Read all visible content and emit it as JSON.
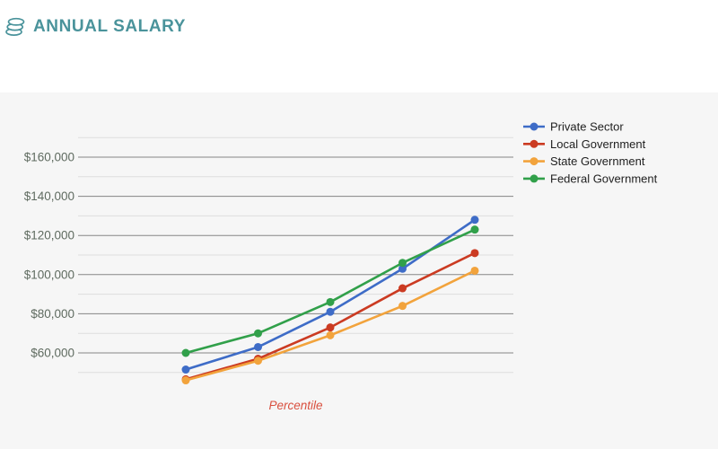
{
  "header": {
    "title": "ANNUAL SALARY",
    "icon": "coins-icon",
    "accent_color": "#4A939B"
  },
  "chart_data": {
    "type": "line",
    "x": [
      1,
      2,
      3,
      4,
      5
    ],
    "x_tick_labels_visible": false,
    "series": [
      {
        "name": "Private Sector",
        "color": "#3E6CC7",
        "values": [
          51500,
          63000,
          81000,
          103000,
          128000
        ]
      },
      {
        "name": "Local Government",
        "color": "#CB3B22",
        "values": [
          46500,
          57000,
          73000,
          93000,
          111000
        ]
      },
      {
        "name": "State Government",
        "color": "#F2A33C",
        "values": [
          46000,
          56000,
          69000,
          84000,
          102000
        ]
      },
      {
        "name": "Federal Government",
        "color": "#31A04A",
        "values": [
          60000,
          70000,
          86000,
          106000,
          123000
        ]
      }
    ],
    "title": "",
    "xlabel": "Percentile",
    "xlabel_color": "#D9503F",
    "ylabel": "",
    "y_ticks": [
      60000,
      80000,
      100000,
      120000,
      140000,
      160000
    ],
    "y_tick_prefix": "$",
    "ylim": [
      43000,
      171000
    ],
    "grid": {
      "major_color": "#858585",
      "minor_color": "#DEDEDE",
      "minor_step": 10000,
      "minor_range": [
        50000,
        170000
      ]
    },
    "legend_position": "right-top",
    "marker": "circle",
    "y_tick_label_color": "#5F6B60",
    "legend_text_color": "#212121"
  },
  "colors": {
    "page_bg": "#FFFFFF",
    "panel_bg": "#F6F6F6"
  }
}
